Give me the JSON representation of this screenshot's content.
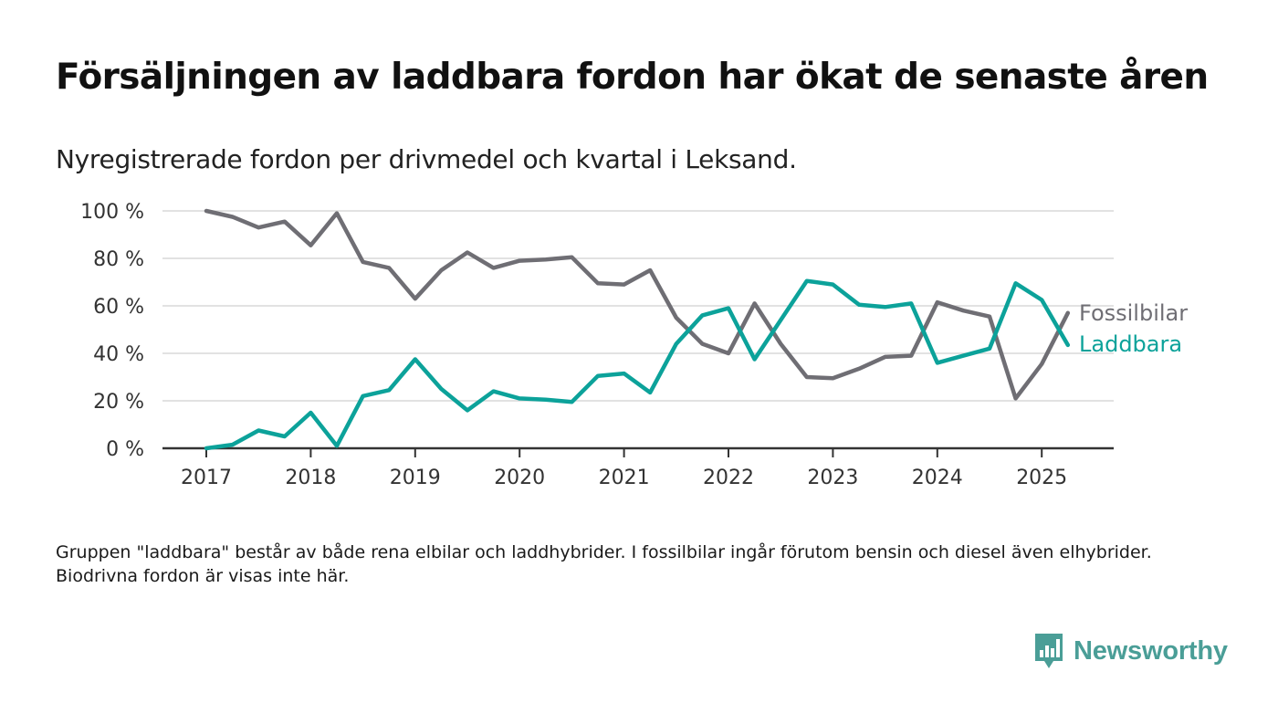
{
  "title": "Försäljningen av laddbara fordon har ökat de senaste åren",
  "subtitle": "Nyregistrerade fordon per drivmedel och kvartal i Leksand.",
  "footnote": "Gruppen \"laddbara\" består av både rena elbilar och laddhybrider. I fossilbilar ingår förutom bensin och diesel även elhybrider. Biodrivna fordon är visas inte här.",
  "logo": {
    "text": "Newsworthy",
    "icon": "newsworthy-logo-icon",
    "color": "#4a9e97"
  },
  "chart_data": {
    "type": "line",
    "x_tick_labels": [
      "2017",
      "2018",
      "2019",
      "2020",
      "2021",
      "2022",
      "2023",
      "2024",
      "2025"
    ],
    "y_tick_labels": [
      "0 %",
      "20 %",
      "40 %",
      "60 %",
      "80 %",
      "100 %"
    ],
    "ylim": [
      0,
      100
    ],
    "grid": true,
    "legend": "inline labels at right end of lines",
    "x": [
      "2017 Q1",
      "2017 Q2",
      "2017 Q3",
      "2017 Q4",
      "2018 Q1",
      "2018 Q2",
      "2018 Q3",
      "2018 Q4",
      "2019 Q1",
      "2019 Q2",
      "2019 Q3",
      "2019 Q4",
      "2020 Q1",
      "2020 Q2",
      "2020 Q3",
      "2020 Q4",
      "2021 Q1",
      "2021 Q2",
      "2021 Q3",
      "2021 Q4",
      "2022 Q1",
      "2022 Q2",
      "2022 Q3",
      "2022 Q4",
      "2023 Q1",
      "2023 Q2",
      "2023 Q3",
      "2023 Q4",
      "2024 Q1",
      "2024 Q2",
      "2024 Q3",
      "2024 Q4",
      "2025 Q1",
      "2025 Q2"
    ],
    "series": [
      {
        "name": "Fossilbilar",
        "color": "#6f6e74",
        "values": [
          100,
          97.5,
          93,
          95.5,
          85.5,
          99,
          78.5,
          76,
          63,
          75,
          82.5,
          76,
          79,
          79.5,
          80.5,
          69.5,
          69,
          75,
          55,
          44,
          40,
          61,
          44,
          30,
          29.5,
          33.5,
          38.5,
          39,
          61.5,
          58,
          55.5,
          21,
          35.5,
          57
        ]
      },
      {
        "name": "Laddbara",
        "color": "#0ca29a",
        "values": [
          0,
          1.5,
          7.5,
          5,
          15,
          1,
          22,
          24.5,
          37.5,
          25,
          16,
          24,
          21,
          20.5,
          19.5,
          30.5,
          31.5,
          23.5,
          44,
          56,
          59,
          37.5,
          54,
          70.5,
          69,
          60.5,
          59.5,
          61,
          36,
          39,
          42,
          69.5,
          62.5,
          43.5
        ]
      }
    ]
  }
}
